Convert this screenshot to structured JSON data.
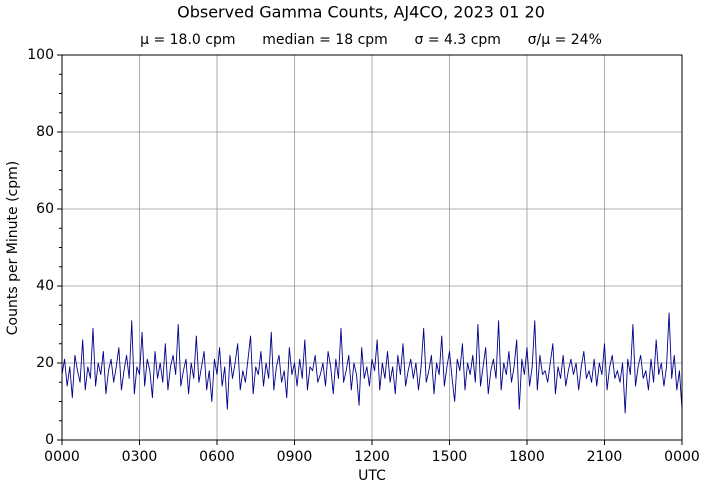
{
  "chart_data": {
    "type": "line",
    "title": "Observed Gamma Counts, AJ4CO, 2023 01 20",
    "subtitle": "μ = 18.0 cpm      median = 18 cpm      σ = 4.3 cpm      σ/μ = 24%",
    "x_label": "UTC",
    "y_label": "Counts per Minute (cpm)",
    "xlim": [
      0,
      1440
    ],
    "xticks": [
      {
        "value": 0,
        "label": "0000"
      },
      {
        "value": 180,
        "label": "0300"
      },
      {
        "value": 360,
        "label": "0600"
      },
      {
        "value": 540,
        "label": "0900"
      },
      {
        "value": 720,
        "label": "1200"
      },
      {
        "value": 900,
        "label": "1500"
      },
      {
        "value": 1080,
        "label": "1800"
      },
      {
        "value": 1260,
        "label": "2100"
      },
      {
        "value": 1440,
        "label": "0000"
      }
    ],
    "ylim": [
      0,
      100
    ],
    "yticks": [
      0,
      20,
      40,
      60,
      80,
      100
    ],
    "y_minor_ticks": [
      5,
      10,
      15,
      25,
      30,
      35,
      45,
      50,
      55,
      65,
      70,
      75,
      85,
      90,
      95
    ],
    "grid": true,
    "x": [
      0,
      6,
      12,
      18,
      24,
      30,
      36,
      42,
      48,
      54,
      60,
      66,
      72,
      78,
      84,
      90,
      96,
      102,
      108,
      114,
      120,
      126,
      132,
      138,
      144,
      150,
      156,
      162,
      168,
      174,
      180,
      186,
      192,
      198,
      204,
      210,
      216,
      222,
      228,
      234,
      240,
      246,
      252,
      258,
      264,
      270,
      276,
      282,
      288,
      294,
      300,
      306,
      312,
      318,
      324,
      330,
      336,
      342,
      348,
      354,
      360,
      366,
      372,
      378,
      384,
      390,
      396,
      402,
      408,
      414,
      420,
      426,
      432,
      438,
      444,
      450,
      456,
      462,
      468,
      474,
      480,
      486,
      492,
      498,
      504,
      510,
      516,
      522,
      528,
      534,
      540,
      546,
      552,
      558,
      564,
      570,
      576,
      582,
      588,
      594,
      600,
      606,
      612,
      618,
      624,
      630,
      636,
      642,
      648,
      654,
      660,
      666,
      672,
      678,
      684,
      690,
      696,
      702,
      708,
      714,
      720,
      726,
      732,
      738,
      744,
      750,
      756,
      762,
      768,
      774,
      780,
      786,
      792,
      798,
      804,
      810,
      816,
      822,
      828,
      834,
      840,
      846,
      852,
      858,
      864,
      870,
      876,
      882,
      888,
      894,
      900,
      906,
      912,
      918,
      924,
      930,
      936,
      942,
      948,
      954,
      960,
      966,
      972,
      978,
      984,
      990,
      996,
      1002,
      1008,
      1014,
      1020,
      1026,
      1032,
      1038,
      1044,
      1050,
      1056,
      1062,
      1068,
      1074,
      1080,
      1086,
      1092,
      1098,
      1104,
      1110,
      1116,
      1122,
      1128,
      1134,
      1140,
      1146,
      1152,
      1158,
      1164,
      1170,
      1176,
      1182,
      1188,
      1194,
      1200,
      1206,
      1212,
      1218,
      1224,
      1230,
      1236,
      1242,
      1248,
      1254,
      1260,
      1266,
      1272,
      1278,
      1284,
      1290,
      1296,
      1302,
      1308,
      1314,
      1320,
      1326,
      1332,
      1338,
      1344,
      1350,
      1356,
      1362,
      1368,
      1374,
      1380,
      1386,
      1392,
      1398,
      1404,
      1410,
      1416,
      1422,
      1428,
      1434,
      1440
    ],
    "series": [
      {
        "color": "#00008b",
        "values": [
          17,
          21,
          14,
          19,
          11,
          22,
          18,
          15,
          26,
          13,
          19,
          16,
          29,
          14,
          20,
          17,
          23,
          12,
          18,
          21,
          15,
          19,
          24,
          13,
          18,
          22,
          16,
          31,
          12,
          19,
          17,
          28,
          14,
          21,
          18,
          11,
          23,
          16,
          20,
          15,
          25,
          13,
          19,
          22,
          17,
          30,
          14,
          18,
          21,
          12,
          20,
          16,
          27,
          15,
          19,
          23,
          13,
          18,
          10,
          21,
          17,
          24,
          14,
          19,
          8,
          22,
          16,
          20,
          25,
          13,
          18,
          15,
          21,
          27,
          12,
          19,
          17,
          23,
          14,
          20,
          16,
          28,
          13,
          19,
          22,
          15,
          18,
          11,
          24,
          17,
          20,
          14,
          21,
          16,
          26,
          13,
          19,
          18,
          22,
          15,
          17,
          20,
          14,
          23,
          19,
          12,
          21,
          16,
          29,
          15,
          18,
          22,
          13,
          20,
          17,
          9,
          24,
          16,
          19,
          14,
          21,
          18,
          26,
          13,
          20,
          16,
          23,
          15,
          19,
          12,
          22,
          17,
          25,
          14,
          18,
          21,
          16,
          20,
          13,
          19,
          29,
          15,
          18,
          22,
          12,
          20,
          17,
          27,
          14,
          19,
          23,
          16,
          10,
          21,
          18,
          25,
          13,
          20,
          17,
          22,
          15,
          30,
          14,
          19,
          24,
          12,
          18,
          21,
          16,
          31,
          13,
          20,
          17,
          23,
          15,
          19,
          26,
          8,
          21,
          17,
          24,
          14,
          19,
          31,
          13,
          22,
          17,
          18,
          15,
          20,
          25,
          12,
          19,
          16,
          22,
          14,
          18,
          21,
          17,
          20,
          13,
          19,
          23,
          16,
          18,
          15,
          21,
          14,
          20,
          17,
          25,
          13,
          19,
          22,
          16,
          18,
          15,
          20,
          7,
          21,
          17,
          30,
          14,
          19,
          22,
          16,
          18,
          13,
          21,
          15,
          26,
          17,
          20,
          14,
          19,
          33,
          16,
          22,
          13,
          18,
          8
        ]
      }
    ]
  }
}
